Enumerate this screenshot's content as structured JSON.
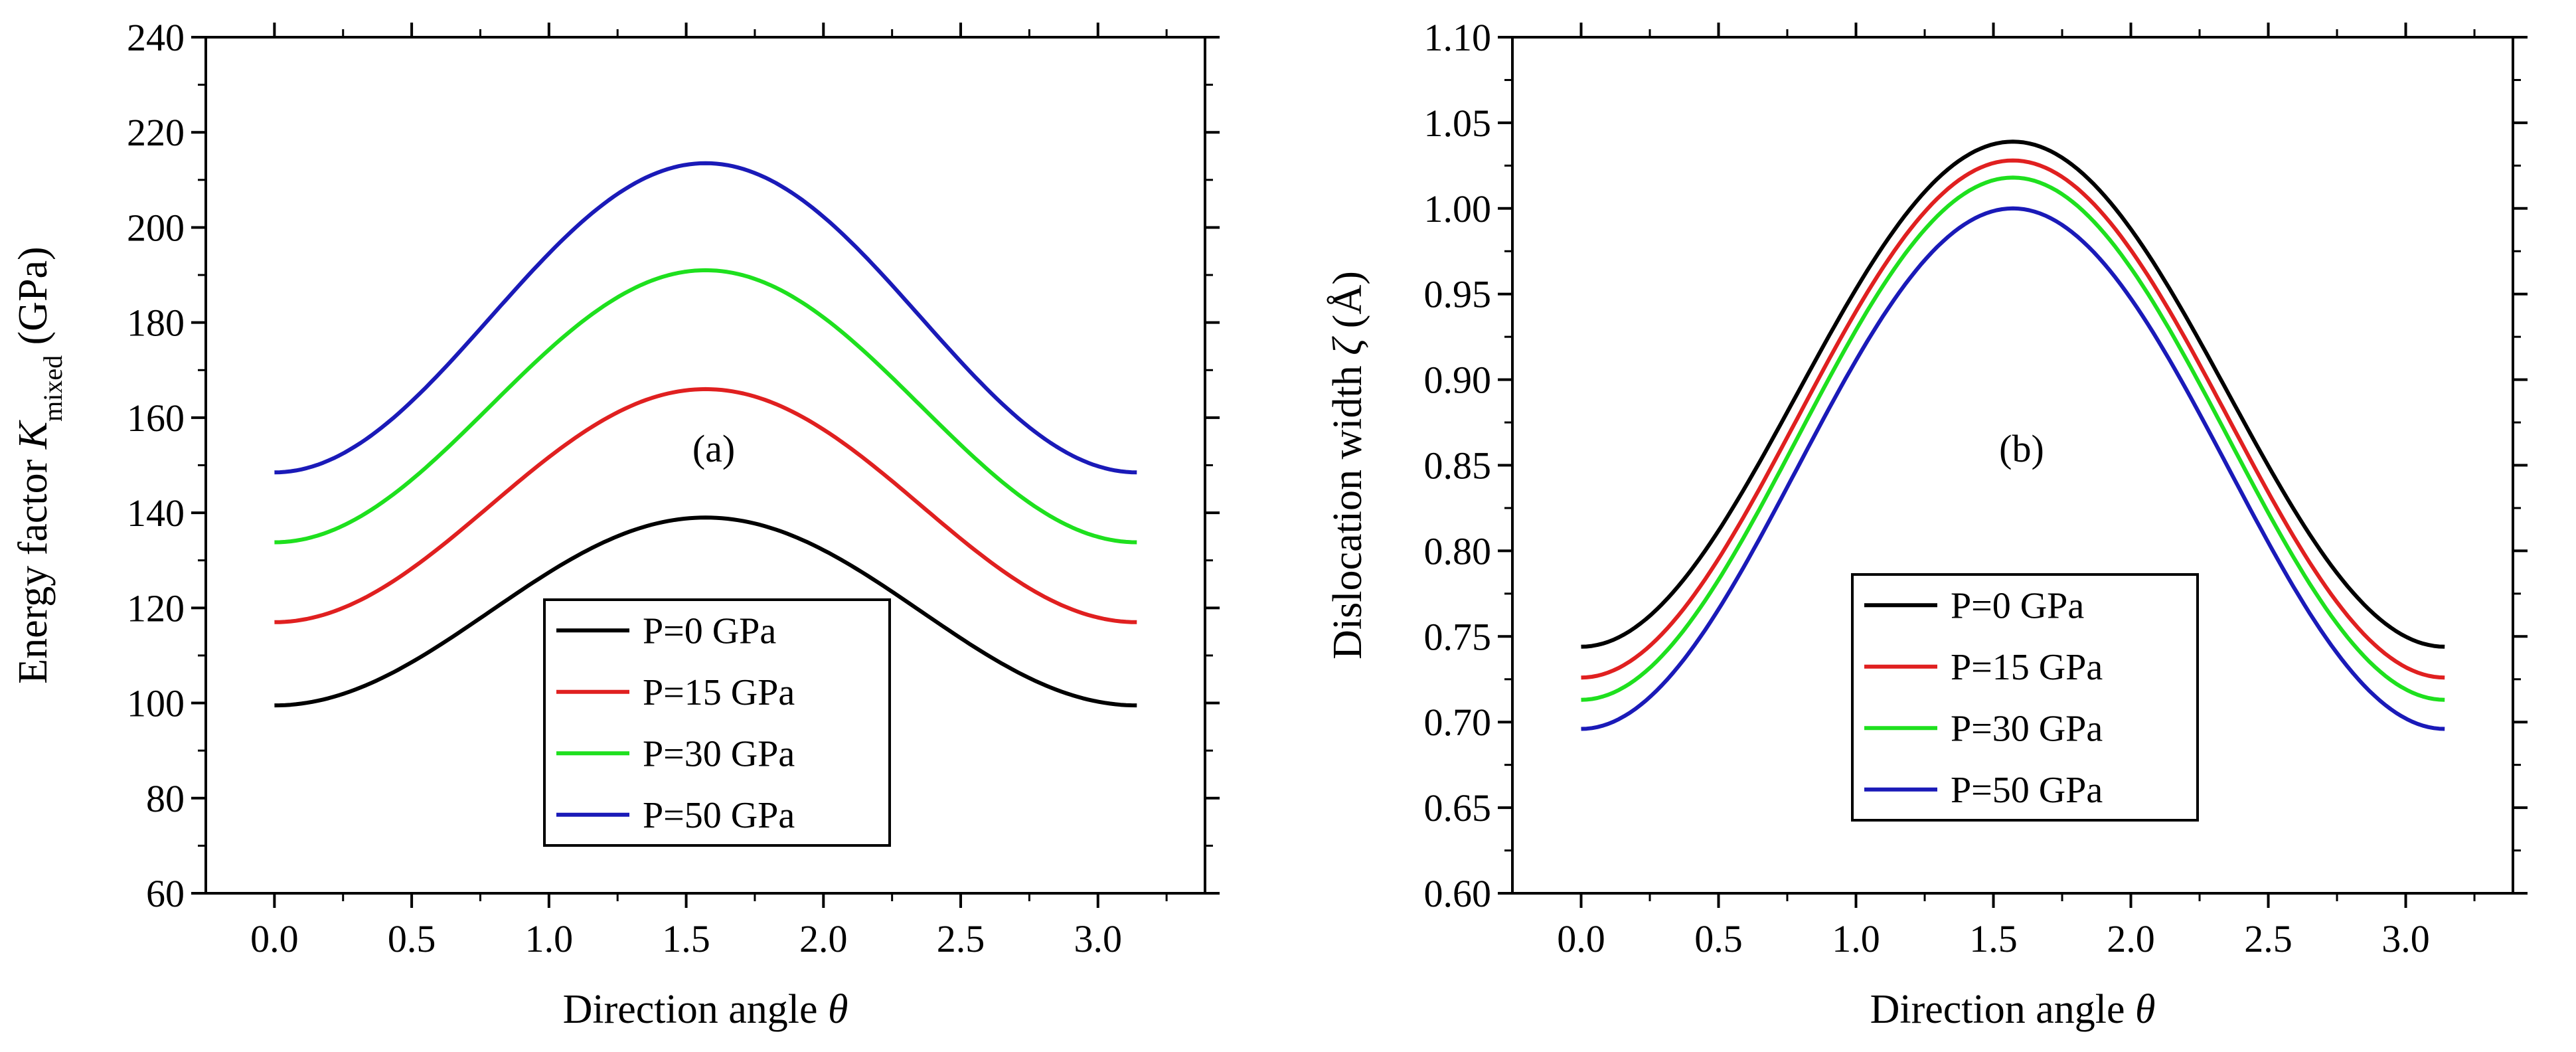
{
  "chart_data": [
    {
      "type": "line",
      "panel_label": "(a)",
      "xlabel": "Direction angle θ",
      "xlabel_main": "Direction angle ",
      "xlabel_symbol": "θ",
      "ylabel": "Energy factor K_mixed (GPa)",
      "ylabel_main": "Energy factor ",
      "ylabel_symbol": "K",
      "ylabel_sub": "mixed",
      "ylabel_unit": " (GPa)",
      "xlim": [
        -0.25,
        3.39
      ],
      "ylim": [
        60,
        240
      ],
      "xticks": [
        "0.0",
        "0.5",
        "1.0",
        "1.5",
        "2.0",
        "2.5",
        "3.0"
      ],
      "yticks": [
        "60",
        "80",
        "100",
        "120",
        "140",
        "160",
        "180",
        "200",
        "220",
        "240"
      ],
      "legend_position": "bottom-center",
      "series": [
        {
          "name": "P=0 GPa",
          "color": "#000000",
          "min": 99.5,
          "max": 139.0
        },
        {
          "name": "P=15 GPa",
          "color": "#e02020",
          "min": 117.0,
          "max": 166.0
        },
        {
          "name": "P=30 GPa",
          "color": "#1ee01e",
          "min": 133.8,
          "max": 191.0
        },
        {
          "name": "P=50 GPa",
          "color": "#1a1ab8",
          "min": 148.5,
          "max": 213.5
        }
      ],
      "curve": "y = min + (max - min) * sin^2(theta), theta from 0 to pi"
    },
    {
      "type": "line",
      "panel_label": "(b)",
      "xlabel": "Direction angle θ",
      "xlabel_main": "Direction angle ",
      "xlabel_symbol": "θ",
      "ylabel": "Dislocation width ζ (Å)",
      "ylabel_main": "Dislocation width ",
      "ylabel_symbol": "ζ",
      "ylabel_sub": "",
      "ylabel_unit": " (Å)",
      "xlim": [
        -0.25,
        3.39
      ],
      "ylim": [
        0.6,
        1.1
      ],
      "xticks": [
        "0.0",
        "0.5",
        "1.0",
        "1.5",
        "2.0",
        "2.5",
        "3.0"
      ],
      "yticks": [
        "0.60",
        "0.65",
        "0.70",
        "0.75",
        "0.80",
        "0.85",
        "0.90",
        "0.95",
        "1.00",
        "1.05",
        "1.10"
      ],
      "legend_position": "bottom-center",
      "series": [
        {
          "name": "P=0 GPa",
          "color": "#000000",
          "min": 0.744,
          "max": 1.039
        },
        {
          "name": "P=15 GPa",
          "color": "#e02020",
          "min": 0.726,
          "max": 1.028
        },
        {
          "name": "P=30 GPa",
          "color": "#1ee01e",
          "min": 0.713,
          "max": 1.018
        },
        {
          "name": "P=50 GPa",
          "color": "#1a1ab8",
          "min": 0.696,
          "max": 1.0
        }
      ],
      "curve": "y = min + (max - min) * sin^2(theta), theta from 0 to pi"
    }
  ]
}
